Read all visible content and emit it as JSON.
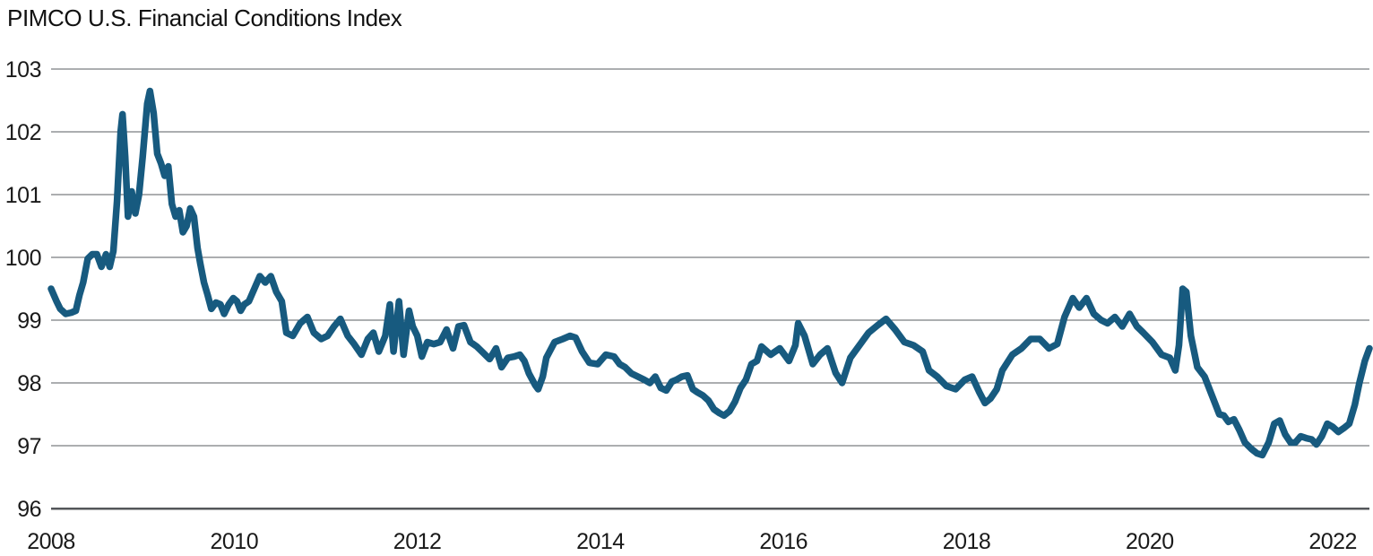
{
  "title": "PIMCO U.S. Financial Conditions Index",
  "colors": {
    "line": "#175A7F",
    "gridline": "#5A5D60",
    "axis": "#54575A",
    "tick_text": "#1A1A1A",
    "background": "#FFFFFF"
  },
  "chart_data": {
    "type": "line",
    "title": "PIMCO U.S. Financial Conditions Index",
    "xlabel": "",
    "ylabel": "",
    "x_ticks": [
      2008,
      2010,
      2012,
      2014,
      2016,
      2018,
      2020,
      2022
    ],
    "y_ticks": [
      96,
      97,
      98,
      99,
      100,
      101,
      102,
      103
    ],
    "xlim": [
      2008,
      2022.4
    ],
    "ylim": [
      96,
      103
    ],
    "grid": "horizontal",
    "legend": "none",
    "series": [
      {
        "name": "U.S. Financial Conditions Index",
        "points": [
          [
            2008.0,
            99.5
          ],
          [
            2008.06,
            99.3
          ],
          [
            2008.1,
            99.18
          ],
          [
            2008.16,
            99.1
          ],
          [
            2008.22,
            99.12
          ],
          [
            2008.27,
            99.15
          ],
          [
            2008.31,
            99.4
          ],
          [
            2008.35,
            99.6
          ],
          [
            2008.4,
            99.98
          ],
          [
            2008.45,
            100.05
          ],
          [
            2008.5,
            100.05
          ],
          [
            2008.55,
            99.85
          ],
          [
            2008.6,
            100.05
          ],
          [
            2008.64,
            99.85
          ],
          [
            2008.68,
            100.1
          ],
          [
            2008.72,
            100.9
          ],
          [
            2008.76,
            102.0
          ],
          [
            2008.78,
            102.28
          ],
          [
            2008.81,
            101.6
          ],
          [
            2008.84,
            100.65
          ],
          [
            2008.88,
            101.05
          ],
          [
            2008.92,
            100.7
          ],
          [
            2008.96,
            101.0
          ],
          [
            2009.0,
            101.6
          ],
          [
            2009.05,
            102.45
          ],
          [
            2009.08,
            102.65
          ],
          [
            2009.12,
            102.3
          ],
          [
            2009.16,
            101.65
          ],
          [
            2009.2,
            101.5
          ],
          [
            2009.24,
            101.3
          ],
          [
            2009.28,
            101.45
          ],
          [
            2009.32,
            100.85
          ],
          [
            2009.36,
            100.65
          ],
          [
            2009.4,
            100.75
          ],
          [
            2009.44,
            100.4
          ],
          [
            2009.48,
            100.5
          ],
          [
            2009.52,
            100.78
          ],
          [
            2009.56,
            100.65
          ],
          [
            2009.6,
            100.15
          ],
          [
            2009.63,
            99.9
          ],
          [
            2009.67,
            99.6
          ],
          [
            2009.71,
            99.4
          ],
          [
            2009.75,
            99.18
          ],
          [
            2009.8,
            99.28
          ],
          [
            2009.85,
            99.25
          ],
          [
            2009.89,
            99.1
          ],
          [
            2009.94,
            99.25
          ],
          [
            2009.99,
            99.35
          ],
          [
            2010.03,
            99.3
          ],
          [
            2010.07,
            99.15
          ],
          [
            2010.11,
            99.25
          ],
          [
            2010.16,
            99.3
          ],
          [
            2010.22,
            99.5
          ],
          [
            2010.28,
            99.7
          ],
          [
            2010.34,
            99.6
          ],
          [
            2010.4,
            99.7
          ],
          [
            2010.46,
            99.45
          ],
          [
            2010.52,
            99.3
          ],
          [
            2010.57,
            98.8
          ],
          [
            2010.64,
            98.75
          ],
          [
            2010.72,
            98.95
          ],
          [
            2010.8,
            99.05
          ],
          [
            2010.87,
            98.8
          ],
          [
            2010.95,
            98.7
          ],
          [
            2011.02,
            98.75
          ],
          [
            2011.09,
            98.9
          ],
          [
            2011.16,
            99.02
          ],
          [
            2011.24,
            98.75
          ],
          [
            2011.31,
            98.62
          ],
          [
            2011.39,
            98.45
          ],
          [
            2011.46,
            98.7
          ],
          [
            2011.52,
            98.8
          ],
          [
            2011.58,
            98.5
          ],
          [
            2011.65,
            98.75
          ],
          [
            2011.7,
            99.25
          ],
          [
            2011.74,
            98.5
          ],
          [
            2011.8,
            99.3
          ],
          [
            2011.85,
            98.45
          ],
          [
            2011.91,
            99.15
          ],
          [
            2011.95,
            98.9
          ],
          [
            2012.0,
            98.75
          ],
          [
            2012.05,
            98.42
          ],
          [
            2012.11,
            98.65
          ],
          [
            2012.18,
            98.62
          ],
          [
            2012.25,
            98.65
          ],
          [
            2012.32,
            98.85
          ],
          [
            2012.39,
            98.55
          ],
          [
            2012.45,
            98.9
          ],
          [
            2012.51,
            98.92
          ],
          [
            2012.58,
            98.65
          ],
          [
            2012.65,
            98.58
          ],
          [
            2012.72,
            98.48
          ],
          [
            2012.79,
            98.38
          ],
          [
            2012.86,
            98.55
          ],
          [
            2012.92,
            98.25
          ],
          [
            2012.99,
            98.4
          ],
          [
            2013.06,
            98.42
          ],
          [
            2013.12,
            98.45
          ],
          [
            2013.17,
            98.35
          ],
          [
            2013.22,
            98.15
          ],
          [
            2013.29,
            97.96
          ],
          [
            2013.32,
            97.9
          ],
          [
            2013.37,
            98.1
          ],
          [
            2013.41,
            98.4
          ],
          [
            2013.5,
            98.65
          ],
          [
            2013.59,
            98.7
          ],
          [
            2013.67,
            98.75
          ],
          [
            2013.73,
            98.72
          ],
          [
            2013.8,
            98.5
          ],
          [
            2013.88,
            98.32
          ],
          [
            2013.97,
            98.3
          ],
          [
            2014.06,
            98.45
          ],
          [
            2014.15,
            98.42
          ],
          [
            2014.21,
            98.3
          ],
          [
            2014.27,
            98.25
          ],
          [
            2014.34,
            98.15
          ],
          [
            2014.41,
            98.1
          ],
          [
            2014.48,
            98.05
          ],
          [
            2014.54,
            98.0
          ],
          [
            2014.6,
            98.1
          ],
          [
            2014.66,
            97.92
          ],
          [
            2014.72,
            97.88
          ],
          [
            2014.78,
            98.02
          ],
          [
            2014.83,
            98.05
          ],
          [
            2014.89,
            98.1
          ],
          [
            2014.95,
            98.12
          ],
          [
            2015.01,
            97.9
          ],
          [
            2015.06,
            97.85
          ],
          [
            2015.12,
            97.8
          ],
          [
            2015.18,
            97.72
          ],
          [
            2015.24,
            97.58
          ],
          [
            2015.3,
            97.52
          ],
          [
            2015.35,
            97.48
          ],
          [
            2015.41,
            97.55
          ],
          [
            2015.47,
            97.7
          ],
          [
            2015.53,
            97.92
          ],
          [
            2015.59,
            98.05
          ],
          [
            2015.65,
            98.3
          ],
          [
            2015.71,
            98.35
          ],
          [
            2015.76,
            98.58
          ],
          [
            2015.86,
            98.45
          ],
          [
            2015.96,
            98.55
          ],
          [
            2016.06,
            98.35
          ],
          [
            2016.13,
            98.6
          ],
          [
            2016.16,
            98.95
          ],
          [
            2016.23,
            98.75
          ],
          [
            2016.32,
            98.3
          ],
          [
            2016.4,
            98.45
          ],
          [
            2016.48,
            98.55
          ],
          [
            2016.57,
            98.16
          ],
          [
            2016.64,
            98.0
          ],
          [
            2016.73,
            98.4
          ],
          [
            2016.83,
            98.6
          ],
          [
            2016.93,
            98.8
          ],
          [
            2017.03,
            98.92
          ],
          [
            2017.12,
            99.02
          ],
          [
            2017.22,
            98.85
          ],
          [
            2017.32,
            98.65
          ],
          [
            2017.42,
            98.6
          ],
          [
            2017.52,
            98.5
          ],
          [
            2017.59,
            98.2
          ],
          [
            2017.68,
            98.1
          ],
          [
            2017.78,
            97.95
          ],
          [
            2017.88,
            97.9
          ],
          [
            2017.98,
            98.05
          ],
          [
            2018.06,
            98.1
          ],
          [
            2018.14,
            97.85
          ],
          [
            2018.2,
            97.68
          ],
          [
            2018.26,
            97.75
          ],
          [
            2018.33,
            97.9
          ],
          [
            2018.39,
            98.2
          ],
          [
            2018.5,
            98.45
          ],
          [
            2018.6,
            98.55
          ],
          [
            2018.7,
            98.7
          ],
          [
            2018.8,
            98.7
          ],
          [
            2018.9,
            98.55
          ],
          [
            2018.99,
            98.62
          ],
          [
            2019.07,
            99.05
          ],
          [
            2019.16,
            99.35
          ],
          [
            2019.23,
            99.2
          ],
          [
            2019.31,
            99.35
          ],
          [
            2019.39,
            99.1
          ],
          [
            2019.47,
            99.0
          ],
          [
            2019.54,
            98.95
          ],
          [
            2019.62,
            99.05
          ],
          [
            2019.7,
            98.9
          ],
          [
            2019.78,
            99.1
          ],
          [
            2019.86,
            98.9
          ],
          [
            2019.93,
            98.8
          ],
          [
            2020.03,
            98.65
          ],
          [
            2020.13,
            98.45
          ],
          [
            2020.22,
            98.4
          ],
          [
            2020.28,
            98.2
          ],
          [
            2020.32,
            98.6
          ],
          [
            2020.36,
            99.5
          ],
          [
            2020.4,
            99.45
          ],
          [
            2020.45,
            98.75
          ],
          [
            2020.52,
            98.25
          ],
          [
            2020.6,
            98.1
          ],
          [
            2020.68,
            97.8
          ],
          [
            2020.76,
            97.5
          ],
          [
            2020.81,
            97.48
          ],
          [
            2020.86,
            97.38
          ],
          [
            2020.92,
            97.42
          ],
          [
            2020.98,
            97.25
          ],
          [
            2021.04,
            97.05
          ],
          [
            2021.11,
            96.95
          ],
          [
            2021.17,
            96.88
          ],
          [
            2021.23,
            96.85
          ],
          [
            2021.3,
            97.05
          ],
          [
            2021.36,
            97.35
          ],
          [
            2021.42,
            97.4
          ],
          [
            2021.48,
            97.18
          ],
          [
            2021.54,
            97.05
          ],
          [
            2021.59,
            97.05
          ],
          [
            2021.65,
            97.15
          ],
          [
            2021.71,
            97.12
          ],
          [
            2021.77,
            97.1
          ],
          [
            2021.82,
            97.02
          ],
          [
            2021.88,
            97.15
          ],
          [
            2021.94,
            97.35
          ],
          [
            2022.0,
            97.3
          ],
          [
            2022.06,
            97.22
          ],
          [
            2022.12,
            97.28
          ],
          [
            2022.18,
            97.35
          ],
          [
            2022.24,
            97.65
          ],
          [
            2022.29,
            98.0
          ],
          [
            2022.35,
            98.35
          ],
          [
            2022.4,
            98.55
          ]
        ]
      }
    ]
  }
}
